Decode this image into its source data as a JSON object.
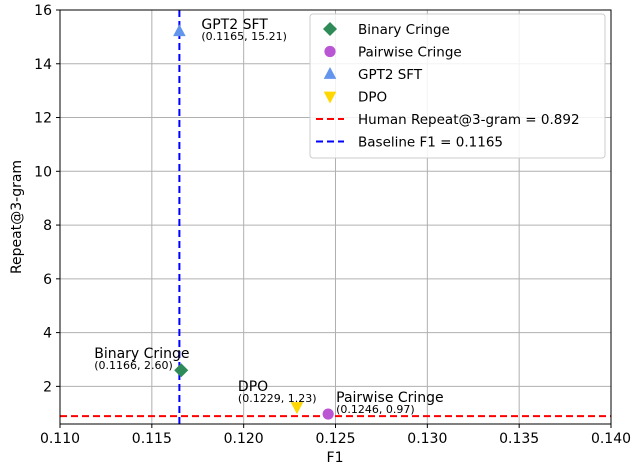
{
  "chart_data": {
    "type": "scatter",
    "xlabel": "F1",
    "ylabel": "Repeat@3-gram",
    "xlim": [
      0.11,
      0.14
    ],
    "ylim": [
      0.6,
      16
    ],
    "x_ticks": [
      0.11,
      0.115,
      0.12,
      0.125,
      0.13,
      0.135,
      0.14
    ],
    "x_tick_labels": [
      "0.110",
      "0.115",
      "0.120",
      "0.125",
      "0.130",
      "0.135",
      "0.140"
    ],
    "y_ticks": [
      2,
      4,
      6,
      8,
      10,
      12,
      14,
      16
    ],
    "y_tick_labels": [
      "2",
      "4",
      "6",
      "8",
      "10",
      "12",
      "14",
      "16"
    ],
    "grid": true,
    "legend_position": "top-right",
    "series": [
      {
        "name": "Binary Cringe",
        "marker": "diamond",
        "color": "#2e8b57",
        "x": 0.1166,
        "y": 2.6,
        "annotation": "Binary Cringe",
        "coord_label": "(0.1166, 2.60)"
      },
      {
        "name": "Pairwise Cringe",
        "marker": "circle",
        "color": "#ba55d3",
        "x": 0.1246,
        "y": 0.97,
        "annotation": "Pairwise Cringe",
        "coord_label": "(0.1246, 0.97)"
      },
      {
        "name": "GPT2 SFT",
        "marker": "triangle-up",
        "color": "#6495ed",
        "x": 0.1165,
        "y": 15.21,
        "annotation": "GPT2 SFT",
        "coord_label": "(0.1165, 15.21)"
      },
      {
        "name": "DPO",
        "marker": "triangle-down",
        "color": "#ffd700",
        "x": 0.1229,
        "y": 1.23,
        "annotation": "DPO",
        "coord_label": "(0.1229, 1.23)"
      }
    ],
    "reference_lines": [
      {
        "name": "Human Repeat@3-gram = 0.892",
        "orientation": "horizontal",
        "value": 0.892,
        "color": "#ff0000",
        "style": "dashed"
      },
      {
        "name": "Baseline F1 = 0.1165",
        "orientation": "vertical",
        "value": 0.1165,
        "color": "#0000ff",
        "style": "dashed"
      }
    ]
  }
}
